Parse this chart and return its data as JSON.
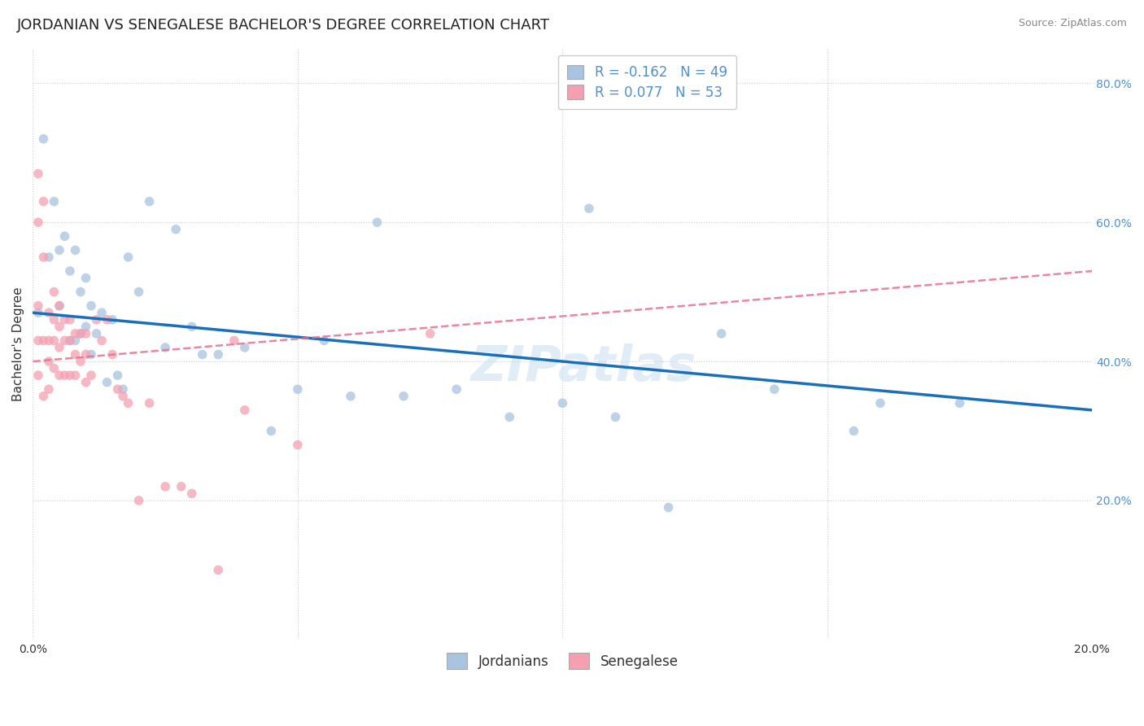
{
  "title": "JORDANIAN VS SENEGALESE BACHELOR'S DEGREE CORRELATION CHART",
  "source": "Source: ZipAtlas.com",
  "ylabel": "Bachelor's Degree",
  "xlabel": "",
  "watermark": "ZIPatlas",
  "xlim": [
    0.0,
    0.2
  ],
  "ylim": [
    0.0,
    0.85
  ],
  "xticks": [
    0.0,
    0.05,
    0.1,
    0.15,
    0.2
  ],
  "yticks": [
    0.2,
    0.4,
    0.6,
    0.8
  ],
  "legend1_R": "-0.162",
  "legend1_N": "49",
  "legend2_R": "0.077",
  "legend2_N": "53",
  "jordan_color": "#a8c4e0",
  "senegal_color": "#f4a0b0",
  "trendline_jordan_color": "#1a6fbb",
  "trendline_senegal_color": "#e87090",
  "legend_label1": "Jordanians",
  "legend_label2": "Senegalese",
  "jordan_x": [
    0.001,
    0.002,
    0.003,
    0.004,
    0.005,
    0.005,
    0.006,
    0.007,
    0.007,
    0.008,
    0.008,
    0.009,
    0.009,
    0.01,
    0.01,
    0.011,
    0.011,
    0.012,
    0.013,
    0.014,
    0.015,
    0.016,
    0.017,
    0.018,
    0.02,
    0.022,
    0.025,
    0.027,
    0.03,
    0.032,
    0.035,
    0.04,
    0.045,
    0.05,
    0.055,
    0.06,
    0.065,
    0.07,
    0.08,
    0.09,
    0.1,
    0.105,
    0.11,
    0.12,
    0.13,
    0.14,
    0.155,
    0.16,
    0.175
  ],
  "jordan_y": [
    0.47,
    0.72,
    0.55,
    0.63,
    0.56,
    0.48,
    0.58,
    0.53,
    0.43,
    0.56,
    0.43,
    0.5,
    0.44,
    0.52,
    0.45,
    0.48,
    0.41,
    0.44,
    0.47,
    0.37,
    0.46,
    0.38,
    0.36,
    0.55,
    0.5,
    0.63,
    0.42,
    0.59,
    0.45,
    0.41,
    0.41,
    0.42,
    0.3,
    0.36,
    0.43,
    0.35,
    0.6,
    0.35,
    0.36,
    0.32,
    0.34,
    0.62,
    0.32,
    0.19,
    0.44,
    0.36,
    0.3,
    0.34,
    0.34
  ],
  "senegal_x": [
    0.001,
    0.001,
    0.001,
    0.001,
    0.001,
    0.002,
    0.002,
    0.002,
    0.002,
    0.003,
    0.003,
    0.003,
    0.003,
    0.004,
    0.004,
    0.004,
    0.004,
    0.005,
    0.005,
    0.005,
    0.005,
    0.006,
    0.006,
    0.006,
    0.007,
    0.007,
    0.007,
    0.008,
    0.008,
    0.008,
    0.009,
    0.009,
    0.01,
    0.01,
    0.01,
    0.011,
    0.012,
    0.013,
    0.014,
    0.015,
    0.016,
    0.017,
    0.018,
    0.02,
    0.022,
    0.025,
    0.028,
    0.03,
    0.035,
    0.038,
    0.04,
    0.05,
    0.075
  ],
  "senegal_y": [
    0.67,
    0.6,
    0.48,
    0.43,
    0.38,
    0.63,
    0.55,
    0.43,
    0.35,
    0.47,
    0.43,
    0.4,
    0.36,
    0.5,
    0.46,
    0.43,
    0.39,
    0.48,
    0.45,
    0.42,
    0.38,
    0.46,
    0.43,
    0.38,
    0.46,
    0.43,
    0.38,
    0.44,
    0.41,
    0.38,
    0.44,
    0.4,
    0.44,
    0.41,
    0.37,
    0.38,
    0.46,
    0.43,
    0.46,
    0.41,
    0.36,
    0.35,
    0.34,
    0.2,
    0.34,
    0.22,
    0.22,
    0.21,
    0.1,
    0.43,
    0.33,
    0.28,
    0.44
  ],
  "title_fontsize": 13,
  "axis_label_fontsize": 11,
  "tick_fontsize": 10,
  "legend_fontsize": 12,
  "source_fontsize": 9,
  "marker_size": 70,
  "marker_alpha": 0.75,
  "background_color": "#ffffff",
  "grid_color": "#cccccc",
  "tick_color_right": "#5090d0",
  "tick_color_bottom": "#333333"
}
